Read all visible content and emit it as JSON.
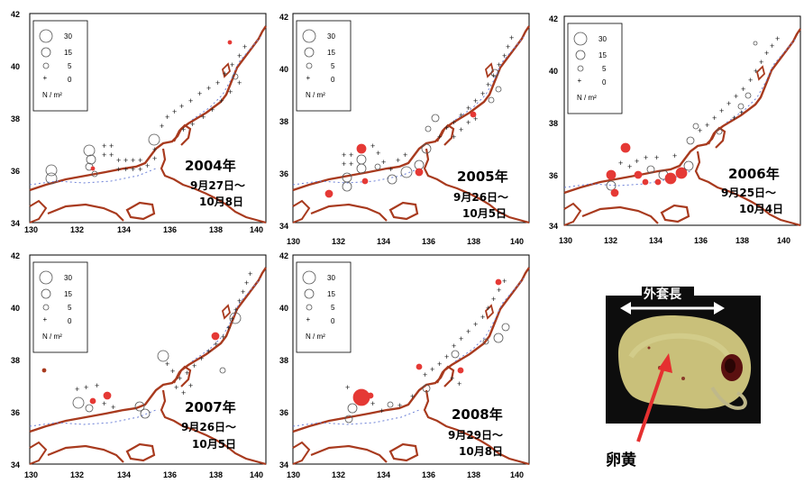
{
  "legend": {
    "entries": [
      "30",
      "15",
      "5",
      "0"
    ],
    "unit": "N / m²"
  },
  "axes": {
    "x_ticks": [
      "130",
      "132",
      "134",
      "136",
      "138",
      "140"
    ],
    "y_ticks": [
      "34",
      "36",
      "38",
      "40",
      "42"
    ]
  },
  "panels": [
    {
      "year": "2004年",
      "period_start": "9月27日～",
      "period_end": "10月8日"
    },
    {
      "year": "2005年",
      "period_start": "9月26日～",
      "period_end": "10月5日"
    },
    {
      "year": "2006年",
      "period_start": "9月25日～",
      "period_end": "10月4日"
    },
    {
      "year": "2007年",
      "period_start": "9月26日～",
      "period_end": "10月5日"
    },
    {
      "year": "2008年",
      "period_start": "9月29日～",
      "period_end": "10月8日"
    }
  ],
  "photo": {
    "mantle_label": "外套長",
    "yolk_label": "卵黄"
  },
  "colors": {
    "coast": "#a83a1e",
    "marker_red": "#e53935",
    "marker_open": "#555555",
    "bathymetry": "#6b7fd6",
    "arrow": "#e53030",
    "photo_bg": "#0d0d0d",
    "specimen": "#c9c07a"
  }
}
